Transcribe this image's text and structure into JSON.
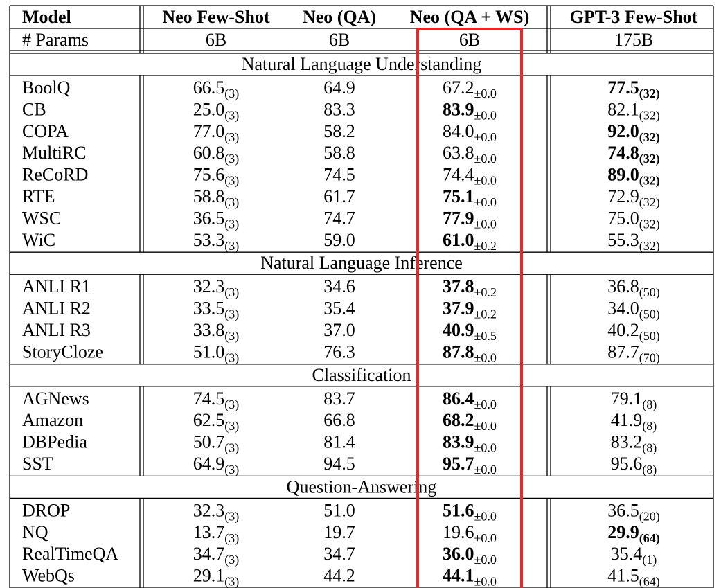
{
  "table": {
    "header": [
      "Model",
      "Neo Few-Shot",
      "Neo (QA)",
      "Neo (QA + WS)",
      "GPT-3 Few-Shot"
    ],
    "params": [
      "# Params",
      "6B",
      "6B",
      "6B",
      "175B"
    ],
    "sections": [
      {
        "title": "Natural Language Understanding",
        "rows": [
          [
            "BoolQ",
            {
              "value": "66.5",
              "sub": "(3)"
            },
            "64.9",
            {
              "value": "67.2",
              "sub": "±0.0"
            },
            {
              "value": "77.5",
              "sub": "(32)",
              "bold": true
            }
          ],
          [
            "CB",
            {
              "value": "25.0",
              "sub": "(3)"
            },
            "83.3",
            {
              "value": "83.9",
              "sub": "±0.0",
              "bold": true
            },
            {
              "value": "82.1",
              "sub": "(32)"
            }
          ],
          [
            "COPA",
            {
              "value": "77.0",
              "sub": "(3)"
            },
            "58.2",
            {
              "value": "84.0",
              "sub": "±0.0"
            },
            {
              "value": "92.0",
              "sub": "(32)",
              "bold": true
            }
          ],
          [
            "MultiRC",
            {
              "value": "60.8",
              "sub": "(3)"
            },
            "58.8",
            {
              "value": "63.8",
              "sub": "±0.0"
            },
            {
              "value": "74.8",
              "sub": "(32)",
              "bold": true
            }
          ],
          [
            "ReCoRD",
            {
              "value": "75.6",
              "sub": "(3)"
            },
            "74.5",
            {
              "value": "74.4",
              "sub": "±0.0"
            },
            {
              "value": "89.0",
              "sub": "(32)",
              "bold": true
            }
          ],
          [
            "RTE",
            {
              "value": "58.8",
              "sub": "(3)"
            },
            "61.7",
            {
              "value": "75.1",
              "sub": "±0.0",
              "bold": true
            },
            {
              "value": "72.9",
              "sub": "(32)"
            }
          ],
          [
            "WSC",
            {
              "value": "36.5",
              "sub": "(3)"
            },
            "74.7",
            {
              "value": "77.9",
              "sub": "±0.0",
              "bold": true
            },
            {
              "value": "75.0",
              "sub": "(32)"
            }
          ],
          [
            "WiC",
            {
              "value": "53.3",
              "sub": "(3)"
            },
            "59.0",
            {
              "value": "61.0",
              "sub": "±0.2",
              "bold": true
            },
            {
              "value": "55.3",
              "sub": "(32)"
            }
          ]
        ]
      },
      {
        "title": "Natural Language Inference",
        "rows": [
          [
            "ANLI R1",
            {
              "value": "32.3",
              "sub": "(3)"
            },
            "34.6",
            {
              "value": "37.8",
              "sub": "±0.2",
              "bold": true
            },
            {
              "value": "36.8",
              "sub": "(50)"
            }
          ],
          [
            "ANLI R2",
            {
              "value": "33.5",
              "sub": "(3)"
            },
            "35.4",
            {
              "value": "37.9",
              "sub": "±0.2",
              "bold": true
            },
            {
              "value": "34.0",
              "sub": "(50)"
            }
          ],
          [
            "ANLI R3",
            {
              "value": "33.8",
              "sub": "(3)"
            },
            "37.0",
            {
              "value": "40.9",
              "sub": "±0.5",
              "bold": true
            },
            {
              "value": "40.2",
              "sub": "(50)"
            }
          ],
          [
            "StoryCloze",
            {
              "value": "51.0",
              "sub": "(3)"
            },
            "76.3",
            {
              "value": "87.8",
              "sub": "±0.0",
              "bold": true
            },
            {
              "value": "87.7",
              "sub": "(70)"
            }
          ]
        ]
      },
      {
        "title": "Classification",
        "rows": [
          [
            "AGNews",
            {
              "value": "74.5",
              "sub": "(3)"
            },
            "83.7",
            {
              "value": "86.4",
              "sub": "±0.0",
              "bold": true
            },
            {
              "value": "79.1",
              "sub": "(8)"
            }
          ],
          [
            "Amazon",
            {
              "value": "62.5",
              "sub": "(3)"
            },
            "66.8",
            {
              "value": "68.2",
              "sub": "±0.0",
              "bold": true
            },
            {
              "value": "41.9",
              "sub": "(8)"
            }
          ],
          [
            "DBPedia",
            {
              "value": "50.7",
              "sub": "(3)"
            },
            "81.4",
            {
              "value": "83.9",
              "sub": "±0.0",
              "bold": true
            },
            {
              "value": "83.2",
              "sub": "(8)"
            }
          ],
          [
            "SST",
            {
              "value": "64.9",
              "sub": "(3)"
            },
            "94.5",
            {
              "value": "95.7",
              "sub": "±0.0",
              "bold": true
            },
            {
              "value": "95.6",
              "sub": "(8)"
            }
          ]
        ]
      },
      {
        "title": "Question-Answering",
        "rows": [
          [
            "DROP",
            {
              "value": "32.3",
              "sub": "(3)"
            },
            "51.0",
            {
              "value": "51.6",
              "sub": "±0.0",
              "bold": true
            },
            {
              "value": "36.5",
              "sub": "(20)"
            }
          ],
          [
            "NQ",
            {
              "value": "13.7",
              "sub": "(3)"
            },
            "19.7",
            {
              "value": "19.6",
              "sub": "±0.0"
            },
            {
              "value": "29.9",
              "sub": "(64)",
              "bold": true
            }
          ],
          [
            "RealTimeQA",
            {
              "value": "34.7",
              "sub": "(3)"
            },
            "34.7",
            {
              "value": "36.0",
              "sub": "±0.0",
              "bold": true
            },
            {
              "value": "35.4",
              "sub": "(1)"
            }
          ],
          [
            "WebQs",
            {
              "value": "29.1",
              "sub": "(3)"
            },
            "44.2",
            {
              "value": "44.1",
              "sub": "±0.0",
              "bold": true
            },
            {
              "value": "41.5",
              "sub": "(64)"
            }
          ]
        ]
      }
    ]
  }
}
